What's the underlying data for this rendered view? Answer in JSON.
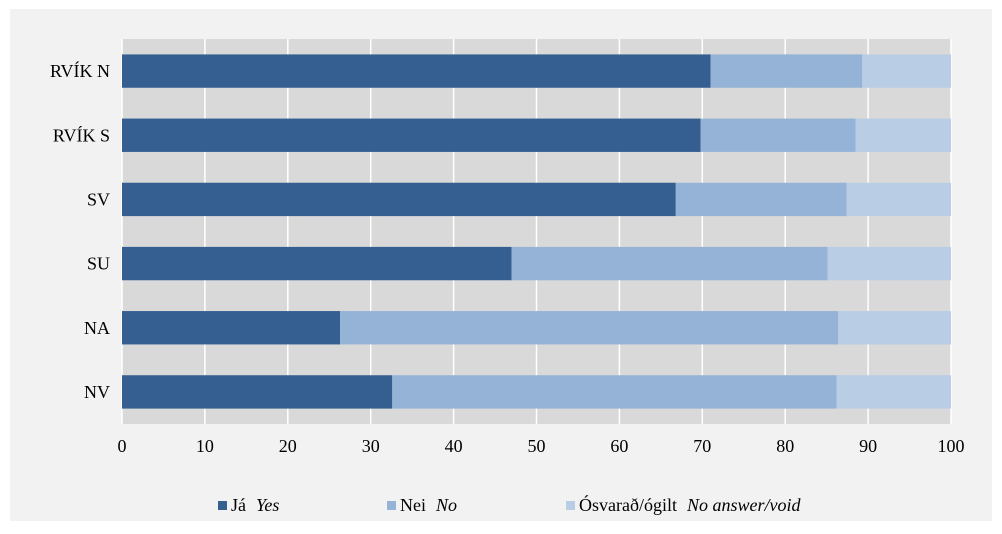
{
  "chart_data": {
    "type": "bar",
    "orientation": "horizontal",
    "stacked": true,
    "categories": [
      "RVÍK N",
      "RVÍK S",
      "SV",
      "SU",
      "NA",
      "NV"
    ],
    "series": [
      {
        "name": "Já",
        "name_en": "Yes",
        "color": "#355f91",
        "values": [
          71,
          69.8,
          66.8,
          47,
          26.3,
          32.6
        ]
      },
      {
        "name": "Nei",
        "name_en": "No",
        "color": "#95b3d7",
        "values": [
          18.3,
          18.7,
          20.6,
          38.1,
          60.1,
          53.6
        ]
      },
      {
        "name": "Ósvarað/ógilt",
        "name_en": "No answer/void",
        "color": "#b9cde5",
        "values": [
          10.7,
          11.5,
          12.6,
          14.9,
          13.6,
          13.8
        ]
      }
    ],
    "xlim": [
      0,
      100
    ],
    "xticks": [
      0,
      10,
      20,
      30,
      40,
      50,
      60,
      70,
      80,
      90,
      100
    ],
    "grid": true,
    "legend_position": "bottom",
    "plot_background": "#d9d9d9",
    "panel_background": "#f2f2f2"
  }
}
